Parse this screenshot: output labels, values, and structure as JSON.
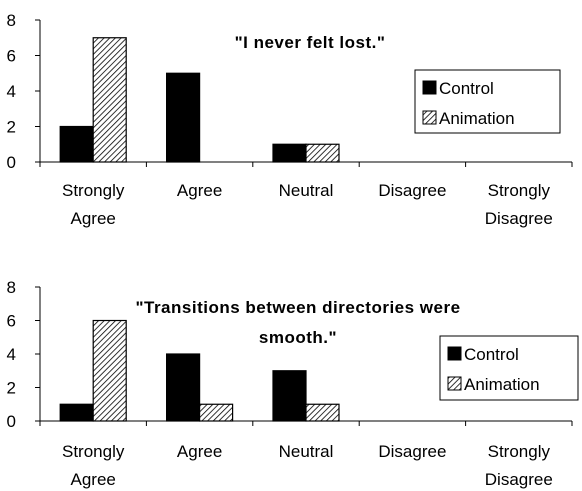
{
  "chart_data": [
    {
      "type": "bar",
      "title": "\"I never felt lost.\"",
      "categories": [
        "Strongly Agree",
        "Agree",
        "Neutral",
        "Disagree",
        "Strongly Disagree"
      ],
      "series": [
        {
          "name": "Control",
          "color": "#000000",
          "values": [
            2,
            5,
            1,
            0,
            0
          ]
        },
        {
          "name": "Animation",
          "color": "#ffffff",
          "pattern": "diagonal-hatch",
          "values": [
            7,
            0,
            1,
            0,
            0
          ]
        }
      ],
      "ylim": [
        0,
        8
      ],
      "yticks": [
        0,
        2,
        4,
        6,
        8
      ],
      "grid": false,
      "legend": "right"
    },
    {
      "type": "bar",
      "title": "\"Transitions between directories were smooth.\"",
      "categories": [
        "Strongly Agree",
        "Agree",
        "Neutral",
        "Disagree",
        "Strongly Disagree"
      ],
      "series": [
        {
          "name": "Control",
          "color": "#000000",
          "values": [
            1,
            4,
            3,
            0,
            0
          ]
        },
        {
          "name": "Animation",
          "color": "#ffffff",
          "pattern": "diagonal-hatch",
          "values": [
            6,
            1,
            1,
            0,
            0
          ]
        }
      ],
      "ylim": [
        0,
        8
      ],
      "yticks": [
        0,
        2,
        4,
        6,
        8
      ],
      "grid": false,
      "legend": "right"
    }
  ]
}
